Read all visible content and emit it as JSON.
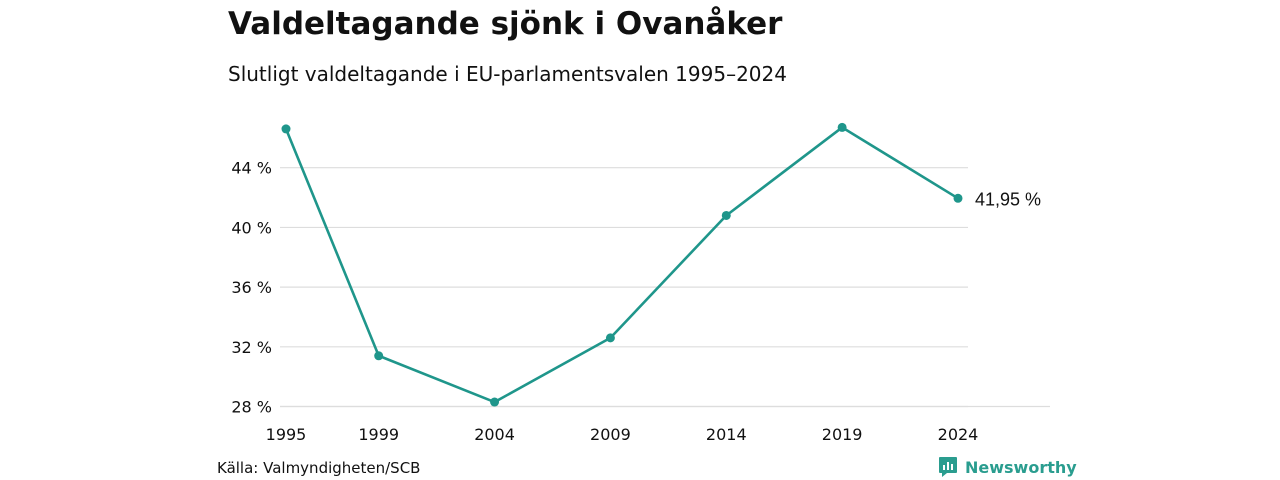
{
  "header": {
    "title": "Valdeltagande sjönk i Ovanåker",
    "subtitle": "Slutligt valdeltagande i EU-parlamentsvalen 1995–2024"
  },
  "footer": {
    "source": "Källa: Valmyndigheten/SCB",
    "brand": "Newsworthy"
  },
  "colors": {
    "line": "#1f968b",
    "grid": "#dddddd",
    "brand": "#2a9d8f"
  },
  "chart_data": {
    "type": "line",
    "title": "Valdeltagande sjönk i Ovanåker",
    "subtitle": "Slutligt valdeltagande i EU-parlamentsvalen 1995–2024",
    "x": [
      "1995",
      "1999",
      "2004",
      "2009",
      "2014",
      "2019",
      "2024"
    ],
    "series": [
      {
        "values": [
          46.6,
          31.4,
          28.3,
          32.6,
          40.8,
          46.7,
          41.95
        ]
      }
    ],
    "y_ticks": [
      28,
      32,
      36,
      40,
      44
    ],
    "y_tick_labels": [
      "28 %",
      "32 %",
      "36 %",
      "40 %",
      "44 %"
    ],
    "ylim": [
      27.5,
      48
    ],
    "end_label": "41,95 %",
    "xlabel": "",
    "ylabel": "",
    "grid": true,
    "legend": false
  }
}
